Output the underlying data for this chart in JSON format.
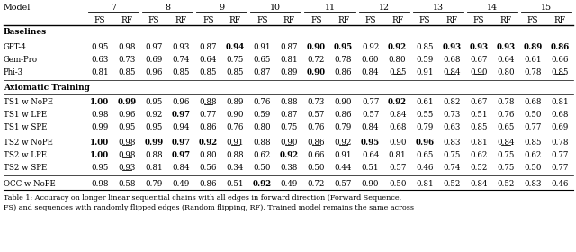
{
  "caption": "Table 1: Accuracy on longer linear sequential chains with all edges in forward direction (Forward Sequence,\nFS) and sequences with randomly flipped edges (Random flipping, RF). Trained model remains the same across",
  "col_groups": [
    "7",
    "8",
    "9",
    "10",
    "11",
    "12",
    "13",
    "14",
    "15"
  ],
  "rows": [
    {
      "model": "GPT-4",
      "section": "Baselines",
      "values": [
        0.95,
        0.98,
        0.97,
        0.93,
        0.87,
        0.94,
        0.91,
        0.87,
        0.9,
        0.95,
        0.92,
        0.92,
        0.85,
        0.93,
        0.93,
        0.93,
        0.89,
        0.86
      ],
      "bold": [
        false,
        false,
        false,
        false,
        false,
        true,
        false,
        false,
        true,
        true,
        false,
        true,
        false,
        true,
        true,
        true,
        true,
        true
      ],
      "underline": [
        false,
        true,
        true,
        false,
        false,
        false,
        true,
        false,
        false,
        false,
        true,
        true,
        true,
        false,
        false,
        false,
        false,
        false
      ]
    },
    {
      "model": "Gem-Pro",
      "section": "Baselines",
      "values": [
        0.63,
        0.73,
        0.69,
        0.74,
        0.64,
        0.75,
        0.65,
        0.81,
        0.72,
        0.78,
        0.6,
        0.8,
        0.59,
        0.68,
        0.67,
        0.64,
        0.61,
        0.66
      ],
      "bold": [
        false,
        false,
        false,
        false,
        false,
        false,
        false,
        false,
        false,
        false,
        false,
        false,
        false,
        false,
        false,
        false,
        false,
        false
      ],
      "underline": [
        false,
        false,
        false,
        false,
        false,
        false,
        false,
        false,
        false,
        false,
        false,
        false,
        false,
        false,
        false,
        false,
        false,
        false
      ]
    },
    {
      "model": "Phi-3",
      "section": "Baselines",
      "values": [
        0.81,
        0.85,
        0.96,
        0.85,
        0.85,
        0.85,
        0.87,
        0.89,
        0.9,
        0.86,
        0.84,
        0.85,
        0.91,
        0.84,
        0.9,
        0.8,
        0.78,
        0.85
      ],
      "bold": [
        false,
        false,
        false,
        false,
        false,
        false,
        false,
        false,
        true,
        false,
        false,
        false,
        false,
        false,
        false,
        false,
        false,
        false
      ],
      "underline": [
        false,
        false,
        false,
        false,
        false,
        false,
        false,
        false,
        false,
        false,
        false,
        true,
        false,
        true,
        true,
        false,
        false,
        true
      ]
    },
    {
      "model": "TS1 w NoPE",
      "section": "Axiomatic Training",
      "values": [
        1.0,
        0.99,
        0.95,
        0.96,
        0.88,
        0.89,
        0.76,
        0.88,
        0.73,
        0.9,
        0.77,
        0.92,
        0.61,
        0.82,
        0.67,
        0.78,
        0.68,
        0.81
      ],
      "bold": [
        true,
        true,
        false,
        false,
        false,
        false,
        false,
        false,
        false,
        false,
        false,
        true,
        false,
        false,
        false,
        false,
        false,
        false
      ],
      "underline": [
        false,
        false,
        false,
        false,
        true,
        false,
        false,
        false,
        false,
        false,
        false,
        false,
        false,
        false,
        false,
        false,
        false,
        false
      ]
    },
    {
      "model": "TS1 w LPE",
      "section": "Axiomatic Training",
      "values": [
        0.98,
        0.96,
        0.92,
        0.97,
        0.77,
        0.9,
        0.59,
        0.87,
        0.57,
        0.86,
        0.57,
        0.84,
        0.55,
        0.73,
        0.51,
        0.76,
        0.5,
        0.68
      ],
      "bold": [
        false,
        false,
        false,
        true,
        false,
        false,
        false,
        false,
        false,
        false,
        false,
        false,
        false,
        false,
        false,
        false,
        false,
        false
      ],
      "underline": [
        false,
        false,
        false,
        false,
        false,
        false,
        false,
        false,
        false,
        false,
        false,
        false,
        false,
        false,
        false,
        false,
        false,
        false
      ]
    },
    {
      "model": "TS1 w SPE",
      "section": "Axiomatic Training",
      "values": [
        0.99,
        0.95,
        0.95,
        0.94,
        0.86,
        0.76,
        0.8,
        0.75,
        0.76,
        0.79,
        0.84,
        0.68,
        0.79,
        0.63,
        0.85,
        0.65,
        0.77,
        0.69
      ],
      "bold": [
        false,
        false,
        false,
        false,
        false,
        false,
        false,
        false,
        false,
        false,
        false,
        false,
        false,
        false,
        false,
        false,
        false,
        false
      ],
      "underline": [
        true,
        false,
        false,
        false,
        false,
        false,
        false,
        false,
        false,
        false,
        false,
        false,
        false,
        false,
        false,
        false,
        false,
        false
      ]
    },
    {
      "model": "TS2 w NoPE",
      "section": "Axiomatic Training",
      "values": [
        1.0,
        0.98,
        0.99,
        0.97,
        0.92,
        0.91,
        0.88,
        0.9,
        0.86,
        0.92,
        0.95,
        0.9,
        0.96,
        0.83,
        0.81,
        0.84,
        0.85,
        0.78
      ],
      "bold": [
        true,
        false,
        true,
        true,
        true,
        false,
        false,
        false,
        false,
        false,
        true,
        false,
        true,
        false,
        false,
        false,
        false,
        false
      ],
      "underline": [
        false,
        true,
        false,
        false,
        false,
        true,
        false,
        true,
        true,
        true,
        false,
        false,
        false,
        false,
        false,
        true,
        false,
        false
      ]
    },
    {
      "model": "TS2 w LPE",
      "section": "Axiomatic Training",
      "values": [
        1.0,
        0.98,
        0.88,
        0.97,
        0.8,
        0.88,
        0.62,
        0.92,
        0.66,
        0.91,
        0.64,
        0.81,
        0.65,
        0.75,
        0.62,
        0.75,
        0.62,
        0.77
      ],
      "bold": [
        true,
        false,
        false,
        true,
        false,
        false,
        false,
        true,
        false,
        false,
        false,
        false,
        false,
        false,
        false,
        false,
        false,
        false
      ],
      "underline": [
        false,
        true,
        false,
        false,
        false,
        false,
        false,
        false,
        false,
        false,
        false,
        false,
        false,
        false,
        false,
        false,
        false,
        false
      ]
    },
    {
      "model": "TS2 w SPE",
      "section": "Axiomatic Training",
      "values": [
        0.95,
        0.93,
        0.81,
        0.84,
        0.56,
        0.34,
        0.5,
        0.38,
        0.5,
        0.44,
        0.51,
        0.57,
        0.46,
        0.74,
        0.52,
        0.75,
        0.5,
        0.77
      ],
      "bold": [
        false,
        false,
        false,
        false,
        false,
        false,
        false,
        false,
        false,
        false,
        false,
        false,
        false,
        false,
        false,
        false,
        false,
        false
      ],
      "underline": [
        false,
        true,
        false,
        false,
        false,
        false,
        false,
        false,
        false,
        false,
        false,
        false,
        false,
        false,
        false,
        false,
        false,
        false
      ]
    },
    {
      "model": "OCC w NoPE",
      "section": "OCC",
      "values": [
        0.98,
        0.58,
        0.79,
        0.49,
        0.86,
        0.51,
        0.92,
        0.49,
        0.72,
        0.57,
        0.9,
        0.5,
        0.81,
        0.52,
        0.84,
        0.52,
        0.83,
        0.46
      ],
      "bold": [
        false,
        false,
        false,
        false,
        false,
        false,
        true,
        false,
        false,
        false,
        false,
        false,
        false,
        false,
        false,
        false,
        false,
        false
      ],
      "underline": [
        false,
        false,
        false,
        false,
        false,
        false,
        false,
        false,
        false,
        false,
        false,
        false,
        false,
        false,
        false,
        false,
        false,
        false
      ]
    }
  ]
}
